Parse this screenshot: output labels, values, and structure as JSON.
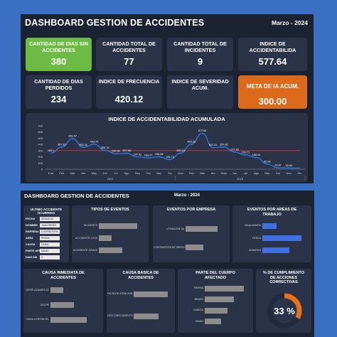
{
  "dashboard_top": {
    "title": "DASHBOARD GESTION DE ACCIDENTES",
    "date": "Marzo  -  2024",
    "kpis": [
      {
        "label": "CANTIDAD DE DIAS SIN ACCIDENTES",
        "value": "380",
        "style": "green"
      },
      {
        "label": "CANTIDAD TOTAL DE ACCIDENTES",
        "value": "77",
        "style": "dark"
      },
      {
        "label": "CANTIDAD TOTAL DE INCIDENTES",
        "value": "9",
        "style": "dark"
      },
      {
        "label": "INDICE DE ACCIDENTABILIDA",
        "value": "577.64",
        "style": "dark"
      },
      {
        "label": "CANTIDAD DE DIAS PERDIDOS",
        "value": "234",
        "style": "dark"
      },
      {
        "label": "INDICE DE FRECUENCIA",
        "value": "420.12",
        "style": "dark"
      },
      {
        "label": "INDICE DE SEVERIDAD ACUM.",
        "value": "",
        "style": "dark"
      },
      {
        "label": "META DE IA ACUM.",
        "value": "300.00",
        "style": "orange"
      }
    ],
    "colors": {
      "green": "#6dbb45",
      "orange": "#db6a1c",
      "panel": "#2a3347",
      "bg": "#1b2333",
      "line": "#2f7ae5",
      "target": "#d9342b"
    }
  },
  "chart_data": {
    "type": "line",
    "title": "INDICE DE ACCIDENTABILIDAD ACUMULADA",
    "categories": [
      "Ene",
      "Feb",
      "Mar",
      "Abr",
      "May",
      "Jun",
      "Jul",
      "Ago",
      "Sep",
      "Oct",
      "Nov",
      "Dic",
      "Ene",
      "Feb",
      "Mar",
      "Abr",
      "May",
      "Jun",
      "Jul",
      "Ago",
      "Sep",
      "Oct",
      "Nov",
      "Dic"
    ],
    "year_groups": [
      {
        "label": "2021",
        "span": 12
      },
      {
        "label": "2022",
        "span": 12
      }
    ],
    "series": [
      {
        "name": "",
        "values": [
          260.1,
          357.82,
          491.57,
          352.41,
          403.79,
          305.76,
          249.98,
          257.68,
          197.81,
          183.07,
          198.68,
          155.73,
          260.19,
          403.26,
          577.64,
          347.22,
          357.82,
          277.02,
          230.71,
          188.04,
          82.09,
          23.47,
          18.69,
          18.69
        ]
      },
      {
        "name": "",
        "values": [
          300,
          300,
          300,
          300,
          300,
          300,
          300,
          300,
          300,
          300,
          300,
          300,
          300,
          300,
          300,
          300,
          300,
          300,
          300,
          300,
          300,
          300,
          300,
          300
        ]
      }
    ],
    "point_labels": [
      "260.1",
      "357.82",
      "491.57",
      "352.41",
      "403.79",
      "305.76",
      "249.98",
      "257.68",
      "197.81",
      "183.07",
      "198.68",
      "155.73",
      "260.19",
      "403.26",
      "577.64",
      "347.22",
      "357.82",
      "277.02",
      "230.71",
      "188.04",
      "82.09",
      "23.47",
      "18.69",
      ""
    ],
    "yticks": [
      0,
      100,
      200,
      300,
      400,
      500,
      600,
      700
    ],
    "ylim": [
      0,
      700
    ],
    "grid": false
  },
  "dashboard_bottom": {
    "title": "DASHBOARD GESTION DE ACCIDENTES",
    "date": "Marzo  -  2024",
    "filters": {
      "title": "ULTIMO ACCIDENTE OCURRIDO",
      "rows": [
        {
          "label": "FECHA",
          "value": "09/03/2024"
        },
        {
          "label": "NOMBRE",
          "value": "JUAN PEREZ"
        },
        {
          "label": "EMPRESA",
          "value": "CONTRATISTA"
        },
        {
          "label": "AREA",
          "value": "PESCA"
        },
        {
          "label": "CAUSA",
          "value": "CAIDA"
        },
        {
          "label": "PARTE AFECTADA",
          "value": "MANO"
        },
        {
          "label": "DIAS DM",
          "value": "3"
        }
      ]
    },
    "panels": [
      {
        "title": "TIPOS DE EVENTOS",
        "bars": [
          {
            "label": "INCIDENTE",
            "value": 0.9
          },
          {
            "label": "ACCIDENTE LEVE",
            "value": 0.3
          },
          {
            "label": "ACCIDENTE GRAVE",
            "value": 0.55
          }
        ],
        "color": "gray"
      },
      {
        "title": "EVENTOS POR EMPRESA",
        "bars": [
          {
            "label": "UTIMAGEN SA",
            "value": 0.9
          },
          {
            "label": "CONTRATISTA DE SERVICIOS",
            "value": 0.5
          }
        ],
        "color": "gray"
      },
      {
        "title": "EVENTOS POR AREAS DE TRABAJO",
        "bars": [
          {
            "label": "MAQUINARIA",
            "value": 0.35
          },
          {
            "label": "PESCA",
            "value": 0.95
          },
          {
            "label": "ALMACEN",
            "value": 0.65
          }
        ],
        "color": "blue"
      },
      {
        "title": "CAUSA INMEDIATA DE ACCIDENTES",
        "bars": [
          {
            "label": "DESPLAZAMIENTO",
            "value": 0.3
          },
          {
            "label": "GOLPE",
            "value": 0.55
          },
          {
            "label": "CAIDA A DESNIVEL",
            "value": 0.85
          }
        ],
        "color": "gray"
      },
      {
        "title": "CAUSA BASICA DE ACCIDENTES",
        "bars": [
          {
            "label": "FALTA DE ATENCION",
            "value": 0.95
          },
          {
            "label": "DESCONOCIMIENTO",
            "value": 0.7
          }
        ],
        "color": "gray"
      },
      {
        "title": "PARTE DEL CUERPO AFECTADO",
        "bars": [
          {
            "label": "PIERNA",
            "value": 0.95
          },
          {
            "label": "BRAZO",
            "value": 0.7
          },
          {
            "label": "CABEZA",
            "value": 0.55
          },
          {
            "label": "MANO",
            "value": 0.4
          }
        ],
        "color": "gray"
      }
    ],
    "gauge": {
      "title": "% DE CUMPLIMIENTO DE ACCIONES CORRECTIVAS",
      "value": "33 %",
      "fraction": 0.33,
      "color": "#e8721c"
    }
  }
}
